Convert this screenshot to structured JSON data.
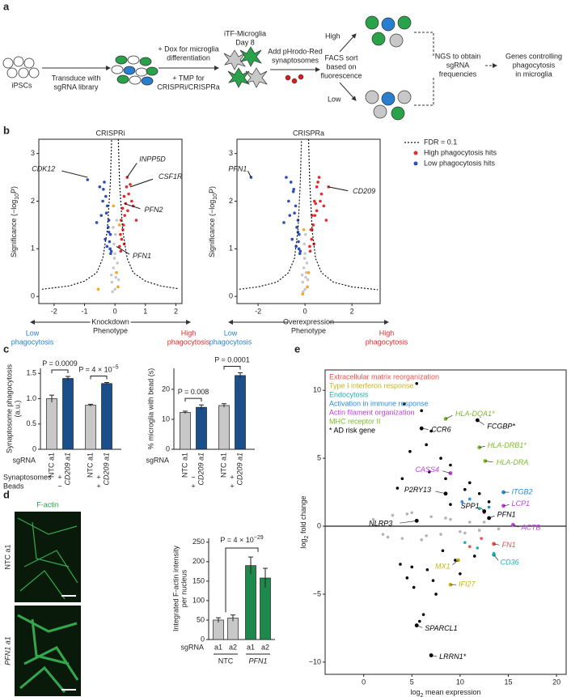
{
  "a": {
    "label": "a",
    "ipscs": "iPSCs",
    "transduce": [
      "Transduce with",
      "sgRNA library"
    ],
    "dox": [
      "+ Dox for microglia",
      "differentiation"
    ],
    "tmp": [
      "+ TMP for",
      "CRISPRi/CRISPRa"
    ],
    "itf": [
      "iTF-Microglia",
      "Day 8"
    ],
    "add": [
      "Add pHrodo-Red",
      "synaptosomes"
    ],
    "high": "High",
    "low": "Low",
    "facs": [
      "FACS sort",
      "based on",
      "fluorescence"
    ],
    "ngs": [
      "NGS to obtain",
      "sgRNA",
      "frequencies"
    ],
    "genes": [
      "Genes controlling",
      "phagocytosis",
      "in microglia"
    ]
  },
  "b": {
    "label": "b",
    "y_label": {
      "pre": "Significance (−log",
      "sub": "10",
      "post": "P)"
    },
    "legend": {
      "fdr": "FDR = 0.1",
      "high": "High phagocytosis hits",
      "low": "Low phagocytosis hits"
    },
    "low_arrow": [
      "Low",
      "phagocytosis"
    ],
    "high_arrow": [
      "High",
      "phagocytosis"
    ],
    "charts": [
      {
        "type": "scatter",
        "title": "CRISPRi",
        "x_label": [
          "Knockdown",
          "Phenotype"
        ],
        "xlim": [
          -2.5,
          2.2
        ],
        "xticks": [
          -2,
          -1,
          0,
          1,
          2
        ],
        "ylim": [
          -0.15,
          3.3
        ],
        "yticks": [
          0,
          1,
          2,
          3
        ],
        "series": [
          {
            "color": "#c8c8c8",
            "x": [
              -0.1,
              -0.05,
              0,
              0.05,
              0.1,
              -0.08,
              0.08,
              -0.03,
              0.03,
              0,
              -0.12,
              0.12,
              0.02,
              -0.02,
              0.06,
              -0.06
            ],
            "y": [
              0.3,
              0.6,
              0.9,
              0.5,
              0.2,
              0.1,
              0.7,
              1.1,
              0.4,
              0.15,
              0.45,
              0.35,
              1.3,
              0.8,
              1.6,
              1.45
            ]
          },
          {
            "name": "Low phagocytosis hits",
            "color": "#2f4fb4",
            "x": [
              -0.9,
              -0.5,
              -0.35,
              -0.3,
              -0.25,
              -0.2,
              -0.15,
              -0.4,
              -0.28,
              -0.22,
              -0.6,
              -0.18,
              -0.32,
              -0.12,
              -0.45,
              -0.26,
              -0.14,
              -0.38,
              -0.2,
              -0.16
            ],
            "y": [
              2.45,
              2.3,
              2.4,
              2.1,
              1.9,
              1.6,
              1.3,
              2.0,
              1.75,
              1.45,
              1.55,
              1.15,
              1.2,
              0.95,
              1.7,
              1.05,
              0.9,
              2.25,
              1.35,
              1.0
            ]
          },
          {
            "name": "High phagocytosis hits",
            "color": "#e8282b",
            "x": [
              0.4,
              0.5,
              0.3,
              0.25,
              0.2,
              0.18,
              0.35,
              0.45,
              0.28,
              0.22,
              0.6,
              0.15,
              0.32,
              0.38,
              0.55,
              0.26,
              0.19,
              0.42,
              0.7,
              0.3
            ],
            "y": [
              2.5,
              2.35,
              2.1,
              1.85,
              1.6,
              1.3,
              1.95,
              2.15,
              1.5,
              1.2,
              1.9,
              1.05,
              1.7,
              2.3,
              2.0,
              1.4,
              0.95,
              1.8,
              1.6,
              1.1
            ]
          },
          {
            "color": "#f5a623",
            "x": [
              0.1,
              -0.05,
              0.15,
              0.05,
              -0.55
            ],
            "y": [
              0.2,
              1.9,
              1.5,
              0.5,
              0.15
            ]
          }
        ],
        "fdr_curve": {
          "x": [
            -2.4,
            -1.5,
            -1,
            -0.6,
            -0.4,
            -0.25,
            -0.15,
            -0.11,
            null,
            0.11,
            0.15,
            0.25,
            0.4,
            0.6,
            1,
            1.5,
            2.1
          ],
          "y": [
            0.15,
            0.22,
            0.32,
            0.5,
            0.8,
            1.4,
            2.4,
            3.3,
            null,
            3.3,
            2.4,
            1.4,
            0.8,
            0.5,
            0.32,
            0.22,
            0.16
          ]
        },
        "genes": [
          {
            "label": "CDK12",
            "x": -0.9,
            "y": 2.5
          },
          {
            "label": "INPP5D",
            "x": 0.4,
            "y": 2.5
          },
          {
            "label": "CSF1R",
            "x": 0.5,
            "y": 2.3
          },
          {
            "label": "PFN2",
            "x": 0.3,
            "y": 1.95
          },
          {
            "label": "PFN1",
            "x": 0.05,
            "y": 1.05
          }
        ]
      },
      {
        "type": "scatter",
        "title": "CRISPRa",
        "x_label": [
          "Overexpression",
          "Phenotype"
        ],
        "xlim": [
          -2.9,
          3.2
        ],
        "xticks": [
          -2,
          0,
          2
        ],
        "ylim": [
          -0.15,
          3.3
        ],
        "yticks": [
          0,
          1,
          2,
          3
        ],
        "series": [
          {
            "color": "#c8c8c8",
            "x": [
              -0.1,
              -0.05,
              0,
              0.05,
              0.1,
              -0.08,
              0.08,
              -0.03,
              0.03,
              0,
              -0.12,
              0.12,
              0.02,
              -0.02
            ],
            "y": [
              0.3,
              0.6,
              0.9,
              0.5,
              0.2,
              0.1,
              0.7,
              1.1,
              0.4,
              0.15,
              0.45,
              0.35,
              1.3,
              0.8
            ]
          },
          {
            "name": "Low phagocytosis hits",
            "color": "#2f4fb4",
            "x": [
              -2.3,
              -0.8,
              -0.6,
              -0.5,
              -0.4,
              -0.3,
              -0.25,
              -0.7,
              -0.45,
              -0.35,
              -0.9,
              -0.28,
              -0.55,
              -0.2,
              -0.65,
              -0.38,
              -0.22,
              -0.48,
              -0.3,
              -0.26
            ],
            "y": [
              2.5,
              2.5,
              2.4,
              2.2,
              1.9,
              1.6,
              1.3,
              2.0,
              1.75,
              1.45,
              1.55,
              1.15,
              1.2,
              0.95,
              1.7,
              1.05,
              0.9,
              2.25,
              1.35,
              1.0
            ]
          },
          {
            "name": "High phagocytosis hits",
            "color": "#e8282b",
            "x": [
              1.0,
              0.6,
              0.5,
              0.4,
              0.3,
              0.25,
              0.45,
              0.7,
              0.35,
              0.28,
              0.8,
              0.2,
              0.42,
              0.55,
              0.65,
              0.3,
              0.22,
              0.5,
              0.9,
              0.38
            ],
            "y": [
              2.3,
              2.5,
              2.3,
              2.0,
              1.7,
              1.4,
              1.95,
              2.15,
              1.5,
              1.2,
              1.9,
              1.05,
              1.7,
              2.4,
              2.0,
              1.4,
              0.95,
              1.8,
              1.6,
              1.1
            ]
          },
          {
            "color": "#f5a623",
            "x": [
              0.1,
              -0.05,
              0.15,
              -0.1
            ],
            "y": [
              0.2,
              1.4,
              0.5,
              0.05
            ]
          }
        ],
        "fdr_curve": {
          "x": [
            -2.8,
            -2,
            -1.2,
            -0.7,
            -0.45,
            -0.3,
            -0.2,
            -0.15,
            null,
            0.15,
            0.2,
            0.3,
            0.45,
            0.7,
            1.2,
            2,
            3.1
          ],
          "y": [
            0.15,
            0.2,
            0.3,
            0.5,
            0.8,
            1.4,
            2.4,
            3.3,
            null,
            3.3,
            2.4,
            1.4,
            0.8,
            0.5,
            0.3,
            0.2,
            0.14
          ]
        },
        "genes": [
          {
            "label": "PFN1",
            "x": -2.3,
            "y": 2.5
          },
          {
            "label": "CD209",
            "x": 1.0,
            "y": 2.3
          }
        ]
      }
    ]
  },
  "c": {
    "label": "c",
    "sgrna": "sgRNA",
    "synaptosomes": "Synaptosomes",
    "beads": "Beads",
    "charts": [
      {
        "type": "bar",
        "y_label": [
          "Synaptosome phagocytosis",
          "(a.u.)"
        ],
        "ylim": [
          0,
          1.6
        ],
        "yticks": [
          0,
          0.5,
          {
            "value": 1,
            "label": "1.0"
          },
          1.5
        ],
        "categories": [
          "NTC a1",
          "CD209 a1",
          "NTC a1",
          "CD209 a1"
        ],
        "values": [
          1.0,
          1.4,
          0.87,
          1.3
        ],
        "errors": [
          0.07,
          0.04,
          0.02,
          0.02
        ],
        "colors": [
          "#c8c8c8",
          "#1a4f8c",
          "#c8c8c8",
          "#1a4f8c"
        ],
        "pvalues": [
          {
            "pre": "P = 0.0009"
          },
          {
            "pre": "P = 4 × 10",
            "sup": "−5"
          }
        ],
        "syn": [
          "+",
          "+"
        ],
        "bead": [
          "−",
          "+"
        ]
      },
      {
        "type": "bar",
        "y_label": [
          "% microglia with bead (s)"
        ],
        "ylim": [
          0,
          27
        ],
        "yticks": [
          0,
          10,
          20
        ],
        "categories": [
          "NTC a1",
          "CD209 a1",
          "NTC a1",
          "CD209 a1"
        ],
        "values": [
          12.3,
          14,
          14.6,
          24.6
        ],
        "errors": [
          0.4,
          0.8,
          0.6,
          0.9
        ],
        "colors": [
          "#c8c8c8",
          "#1a4f8c",
          "#c8c8c8",
          "#1a4f8c"
        ],
        "pvalues": [
          {
            "pre": "P = 0.008"
          },
          {
            "pre": "P = 0.0001"
          }
        ],
        "syn": [
          "−",
          "+"
        ],
        "bead": [
          "+",
          "+"
        ]
      }
    ]
  },
  "d": {
    "label": "d",
    "factin": "F-actin",
    "ntc": "NTC a1",
    "pfn1": "PFN1 a1",
    "chart": {
      "type": "bar",
      "y_label": [
        "Integrated F-actin intensity",
        "per nucleus"
      ],
      "ylim": [
        0,
        260
      ],
      "yticks": [
        0,
        50,
        100,
        150,
        200,
        250
      ],
      "categories": [
        "a1",
        "a2",
        "a1",
        "a2"
      ],
      "groups": [
        "NTC",
        "PFN1"
      ],
      "values": [
        50,
        55,
        190,
        158
      ],
      "errors": [
        6,
        8,
        22,
        25
      ],
      "colors": [
        "#c8c8c8",
        "#c8c8c8",
        "#1d8a4c",
        "#1d8a4c"
      ],
      "pvalue": {
        "pre": "P = 4 × 10",
        "sup": "−29"
      },
      "sgrna": "sgRNA"
    }
  },
  "e": {
    "label": "e",
    "chart": {
      "type": "scatter",
      "x_label": {
        "pre": "log",
        "sub": "2",
        "post": " mean expression"
      },
      "y_label": {
        "pre": "log",
        "sub": "2",
        "post": " fold change"
      },
      "xlim": [
        -4,
        21
      ],
      "xticks": [
        0,
        5,
        10,
        15,
        20
      ],
      "ylim": [
        -10.9,
        11.5
      ],
      "yticks": [
        {
          "value": -10,
          "label": "−10"
        },
        {
          "value": -5,
          "label": "−5"
        },
        0,
        5,
        10
      ],
      "legend": [
        {
          "text": "Extracellular matrix reorganization",
          "color": "#f0504a"
        },
        {
          "text": "Type I interferon response",
          "color": "#c9b51a"
        },
        {
          "text": "Endocytosis",
          "color": "#1fb0b0"
        },
        {
          "text": "Activation in immune response",
          "color": "#2a8ee0"
        },
        {
          "text": "Actin filament organization",
          "color": "#c040e0"
        },
        {
          "text": "MHC receptor II",
          "color": "#7cbb2c"
        },
        {
          "text": "* AD risk gene",
          "color": "#000000"
        }
      ],
      "series": [
        {
          "color": "#b4b4b4",
          "x": [
            1,
            2,
            3,
            4,
            5,
            6,
            7,
            8,
            9,
            10,
            11,
            12,
            2.5,
            4.5,
            6.5,
            8.5,
            10.5,
            12.5,
            14
          ],
          "y": [
            0.5,
            -0.6,
            0.8,
            -0.9,
            1.0,
            -1.0,
            0.7,
            -0.6,
            0.5,
            -0.4,
            0.3,
            -0.3,
            -0.8,
            0.9,
            -0.7,
            0.6,
            -0.5,
            0.3,
            -0.2
          ]
        },
        {
          "color": "#000000",
          "x": [
            5.5,
            4.2,
            6,
            7,
            6.5,
            8,
            9,
            4,
            5,
            10,
            11,
            12,
            7.5,
            6.2,
            5.2,
            8.5,
            9.5,
            3.5,
            4.8,
            7.2,
            10.5,
            11.5,
            6.8,
            5.8,
            4.5,
            13,
            9,
            8.2,
            3.8,
            6.6
          ],
          "y": [
            10.5,
            9,
            8.5,
            7,
            6,
            5,
            4.5,
            3.5,
            -3,
            -3.5,
            3.2,
            2.4,
            -5,
            -6.5,
            -4.5,
            3.5,
            -2.5,
            2.8,
            5.5,
            -4,
            2.7,
            -2.2,
            4,
            -7,
            -3.8,
            1.8,
            1.6,
            -1.8,
            -2.8,
            -3.2
          ]
        },
        {
          "color": "#1fb0b0",
          "x": [
            13.5,
            12,
            10.5,
            11.8
          ],
          "y": [
            -2,
            1.3,
            -1.2,
            -1.6
          ]
        },
        {
          "color": "#2a8ee0",
          "x": [
            14.5,
            11,
            13,
            10.2
          ],
          "y": [
            2.5,
            2,
            1.4,
            1.8
          ]
        },
        {
          "color": "#c040e0",
          "x": [
            14.5,
            15.5,
            9,
            12.5
          ],
          "y": [
            1.5,
            0.1,
            3.9,
            1.0
          ]
        },
        {
          "color": "#f0504a",
          "x": [
            13.5,
            11,
            12.2
          ],
          "y": [
            -1.3,
            -1.5,
            -0.9
          ]
        }
      ],
      "genes": [
        {
          "label": "HLA-DQA1*",
          "x": 8.5,
          "y": 7.9,
          "color": "#7cbb2c"
        },
        {
          "label": "CCR6",
          "x": 6,
          "y": 7.2,
          "color": "#000000"
        },
        {
          "label": "FCGBP*",
          "x": 11.8,
          "y": 7.8,
          "color": "#000000"
        },
        {
          "label": "HLA-DRB1*",
          "x": 12,
          "y": 5.8,
          "color": "#7cbb2c"
        },
        {
          "label": "HLA-DRA",
          "x": 12.6,
          "y": 4.8,
          "color": "#7cbb2c"
        },
        {
          "label": "CASS4",
          "x": 9,
          "y": 3.9,
          "color": "#c040e0"
        },
        {
          "label": "ITGB2",
          "x": 14.5,
          "y": 2.5,
          "color": "#2a8ee0"
        },
        {
          "label": "P2RY13",
          "x": 8.5,
          "y": 2.4,
          "color": "#000000"
        },
        {
          "label": "LCP1",
          "x": 14.5,
          "y": 1.5,
          "color": "#c040e0"
        },
        {
          "label": "SPP1",
          "x": 12.5,
          "y": 1.1,
          "color": "#000000"
        },
        {
          "label": "PFN1",
          "x": 13,
          "y": 0.6,
          "color": "#000000"
        },
        {
          "label": "NLRP3",
          "x": 5.5,
          "y": 0.4,
          "color": "#000000"
        },
        {
          "label": "ACTB",
          "x": 15.5,
          "y": 0.1,
          "color": "#c040e0"
        },
        {
          "label": "FN1",
          "x": 13.5,
          "y": -1.3,
          "color": "#f0504a"
        },
        {
          "label": "CD36",
          "x": 13.5,
          "y": -2.1,
          "color": "#1fb0b0"
        },
        {
          "label": "MX1",
          "x": 9.8,
          "y": -2.5,
          "color": "#c9b51a"
        },
        {
          "label": "IFI27",
          "x": 9,
          "y": -4.3,
          "color": "#c9b51a"
        },
        {
          "label": "SPARCL1",
          "x": 5.5,
          "y": -7.3,
          "color": "#000000"
        },
        {
          "label": "LRRN1*",
          "x": 7,
          "y": -9.5,
          "color": "#000000"
        }
      ]
    }
  }
}
